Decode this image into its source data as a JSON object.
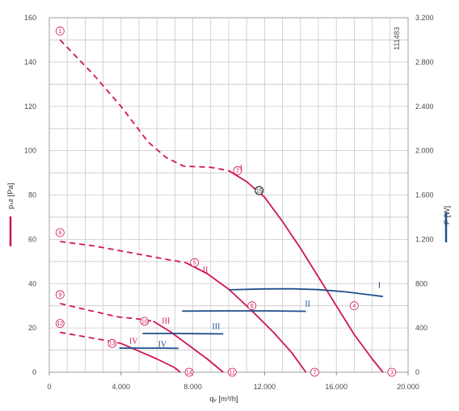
{
  "chart_data": {
    "type": "line",
    "image_id": "111483",
    "xlabel": "qᵥ [m³/h]",
    "ylabel_left": "pₛᴤ [Pa]",
    "ylabel_right": "P [W]",
    "xlim": [
      0,
      20000
    ],
    "ylim_left": [
      0,
      160
    ],
    "ylim_right": [
      0,
      3200
    ],
    "x_ticks": [
      0,
      4000,
      8000,
      12000,
      16000,
      20000
    ],
    "x_tick_labels": [
      "0",
      "4.000",
      "8.000",
      "12.000",
      "16.000",
      "20.000"
    ],
    "y_ticks_left": [
      0,
      20,
      40,
      60,
      80,
      100,
      120,
      140,
      160
    ],
    "y_tick_labels_left": [
      "0",
      "20",
      "40",
      "60",
      "80",
      "100",
      "120",
      "140",
      "160"
    ],
    "y_ticks_right": [
      0,
      400,
      800,
      1200,
      1600,
      2000,
      2400,
      2800,
      3200
    ],
    "y_tick_labels_right": [
      "0",
      "400",
      "800",
      "1.200",
      "1.600",
      "2.000",
      "2.400",
      "2.800",
      "3.200"
    ],
    "grid": true,
    "colors": {
      "pressure": "#d0145a",
      "power": "#1f4e8c",
      "grid": "#c9c9c9"
    },
    "series": [
      {
        "kind": "pressure",
        "curve": "I",
        "dashed": [
          [
            600,
            150
          ],
          [
            2500,
            134
          ],
          [
            4000,
            120
          ],
          [
            5500,
            104
          ],
          [
            6500,
            97
          ],
          [
            7500,
            93
          ],
          [
            9000,
            92.5
          ],
          [
            10000,
            91
          ]
        ],
        "solid": [
          [
            10000,
            91
          ],
          [
            11000,
            86
          ],
          [
            12000,
            79
          ],
          [
            13000,
            68
          ],
          [
            14000,
            56
          ],
          [
            15000,
            43
          ],
          [
            16000,
            30
          ],
          [
            17000,
            17
          ],
          [
            18000,
            6
          ],
          [
            18600,
            0
          ]
        ]
      },
      {
        "kind": "pressure",
        "curve": "II",
        "dashed": [
          [
            600,
            59
          ],
          [
            2500,
            57
          ],
          [
            4500,
            54
          ],
          [
            6500,
            51
          ],
          [
            7600,
            49.5
          ]
        ],
        "solid": [
          [
            7600,
            49.5
          ],
          [
            8800,
            44.5
          ],
          [
            10000,
            37.5
          ],
          [
            11200,
            28.5
          ],
          [
            12500,
            18
          ],
          [
            13500,
            9
          ],
          [
            14300,
            0
          ]
        ]
      },
      {
        "kind": "pressure",
        "curve": "III",
        "dashed": [
          [
            600,
            31
          ],
          [
            2200,
            28
          ],
          [
            3800,
            25
          ],
          [
            5000,
            24
          ],
          [
            5800,
            23
          ]
        ],
        "solid": [
          [
            5800,
            23
          ],
          [
            6800,
            18
          ],
          [
            7800,
            12
          ],
          [
            8800,
            6
          ],
          [
            9700,
            0
          ]
        ]
      },
      {
        "kind": "pressure",
        "curve": "IV",
        "dashed": [
          [
            600,
            18
          ],
          [
            2000,
            16
          ],
          [
            3400,
            14
          ],
          [
            4000,
            13
          ]
        ],
        "solid": [
          [
            4000,
            13
          ],
          [
            5000,
            9.5
          ],
          [
            6000,
            6
          ],
          [
            7000,
            2
          ],
          [
            7300,
            0
          ]
        ]
      },
      {
        "kind": "power",
        "curve": "I",
        "points": [
          [
            10000,
            744
          ],
          [
            12000,
            752
          ],
          [
            13500,
            754
          ],
          [
            15000,
            746
          ],
          [
            16500,
            726
          ],
          [
            18000,
            696
          ],
          [
            18600,
            684
          ]
        ]
      },
      {
        "kind": "power",
        "curve": "II",
        "points": [
          [
            7400,
            552
          ],
          [
            10000,
            554
          ],
          [
            12000,
            554
          ],
          [
            14300,
            550
          ]
        ]
      },
      {
        "kind": "power",
        "curve": "III",
        "points": [
          [
            5200,
            350
          ],
          [
            7000,
            350
          ],
          [
            8500,
            348
          ],
          [
            9700,
            346
          ]
        ]
      },
      {
        "kind": "power",
        "curve": "IV",
        "points": [
          [
            3900,
            218
          ],
          [
            5200,
            218
          ],
          [
            6500,
            218
          ],
          [
            7200,
            216
          ]
        ]
      }
    ],
    "markers": [
      {
        "label": "1",
        "x": 600,
        "y": 150,
        "pos": "above"
      },
      {
        "label": "2",
        "x": 10000,
        "y": 91,
        "pos": "right"
      },
      {
        "label": "3",
        "x": 18600,
        "y": 0,
        "pos": "right"
      },
      {
        "label": "4",
        "x": 16500,
        "y": 30,
        "pos": "right"
      },
      {
        "label": "5",
        "x": 7600,
        "y": 49.5,
        "pos": "right"
      },
      {
        "label": "6",
        "x": 600,
        "y": 59,
        "pos": "above"
      },
      {
        "label": "7",
        "x": 14300,
        "y": 0,
        "pos": "right"
      },
      {
        "label": "8",
        "x": 10800,
        "y": 30,
        "pos": "right"
      },
      {
        "label": "9",
        "x": 600,
        "y": 31,
        "pos": "above"
      },
      {
        "label": "10",
        "x": 5800,
        "y": 23,
        "pos": "left"
      },
      {
        "label": "11",
        "x": 9700,
        "y": 0,
        "pos": "right"
      },
      {
        "label": "12",
        "x": 600,
        "y": 18,
        "pos": "above"
      },
      {
        "label": "13",
        "x": 4000,
        "y": 13,
        "pos": "left"
      },
      {
        "label": "14",
        "x": 7300,
        "y": 0,
        "pos": "right"
      },
      {
        "label": "15",
        "x": 11700,
        "y": 82,
        "pos": "on",
        "style": "black"
      }
    ],
    "curve_labels": [
      {
        "label": "I",
        "kind": "pressure",
        "x": 10700,
        "y": 91
      },
      {
        "label": "II",
        "kind": "pressure",
        "x": 8700,
        "y": 45
      },
      {
        "label": "III",
        "kind": "pressure",
        "x": 6500,
        "y": 22
      },
      {
        "label": "IV",
        "kind": "pressure",
        "x": 4700,
        "y": 13
      },
      {
        "label": "I",
        "kind": "power",
        "x": 18400,
        "y": 760
      },
      {
        "label": "II",
        "kind": "power",
        "x": 14400,
        "y": 594
      },
      {
        "label": "III",
        "kind": "power",
        "x": 9300,
        "y": 390
      },
      {
        "label": "IV",
        "kind": "power",
        "x": 6300,
        "y": 230
      }
    ]
  }
}
